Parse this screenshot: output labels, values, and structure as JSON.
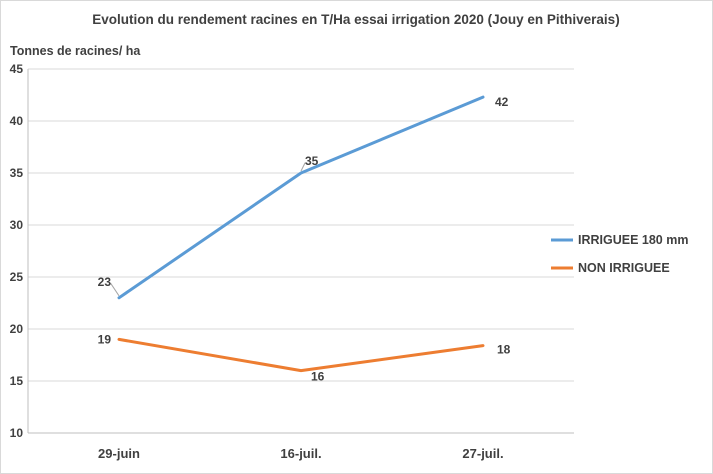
{
  "chart_data": {
    "type": "line",
    "title": "Evolution du rendement racines en T/Ha essai irrigation 2020 (Jouy en Pithiverais)",
    "ylabel": "Tonnes de racines/ ha",
    "xlabel": "",
    "categories": [
      "29-juin",
      "16-juil.",
      "27-juil."
    ],
    "ylim": [
      10,
      45
    ],
    "yticks": [
      10,
      15,
      20,
      25,
      30,
      35,
      40,
      45
    ],
    "grid": true,
    "legend_position": "right",
    "series": [
      {
        "name": "IRRIGUEE 180 mm",
        "values": [
          23,
          35,
          42.3
        ],
        "labels": [
          "23",
          "35",
          "42"
        ],
        "color": "#5b9bd5"
      },
      {
        "name": "NON IRRIGUEE",
        "values": [
          19,
          16,
          18.4
        ],
        "labels": [
          "19",
          "16",
          "18"
        ],
        "color": "#ed7d31"
      }
    ]
  },
  "colors": {
    "grid": "#d9d9d9",
    "axis": "#bfbfbf",
    "text": "#404040"
  }
}
